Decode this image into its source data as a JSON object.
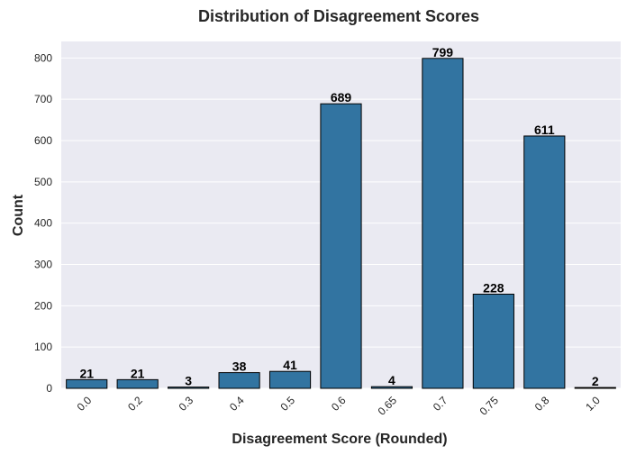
{
  "chart_data": {
    "type": "bar",
    "title": "Distribution of Disagreement Scores",
    "xlabel": "Disagreement Score (Rounded)",
    "ylabel": "Count",
    "categories": [
      "0.0",
      "0.2",
      "0.3",
      "0.4",
      "0.5",
      "0.6",
      "0.65",
      "0.7",
      "0.75",
      "0.8",
      "1.0"
    ],
    "values": [
      21,
      21,
      3,
      38,
      41,
      689,
      4,
      799,
      228,
      611,
      2
    ],
    "data_labels": [
      "21",
      "21",
      "3",
      "38",
      "41",
      "689",
      "4",
      "799",
      "228",
      "611",
      "2"
    ],
    "ylim": [
      0,
      840
    ],
    "yticks": [
      0,
      100,
      200,
      300,
      400,
      500,
      600,
      700,
      800
    ],
    "ytick_labels": [
      "0",
      "100",
      "200",
      "300",
      "400",
      "500",
      "600",
      "700",
      "800"
    ],
    "grid": true,
    "grid_axis": "y",
    "legend": "none",
    "bar_color": "#3274a1",
    "bar_edge_color": "#000000",
    "background_color": "#eaeaf2",
    "grid_color": "#ffffff",
    "xtick_rotation_deg": 45
  }
}
